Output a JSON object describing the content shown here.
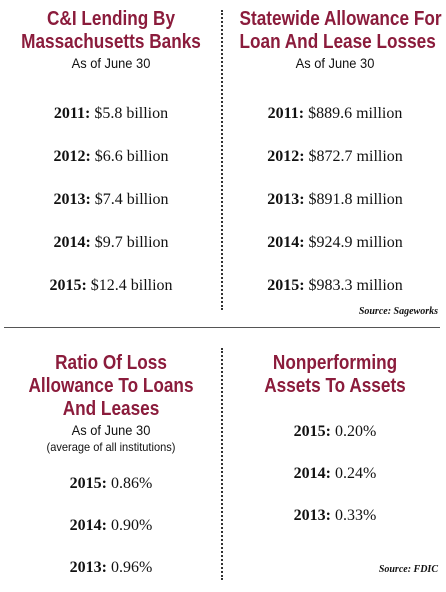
{
  "panels": {
    "ci_lending": {
      "title_line1": "C&I Lending By",
      "title_line2": "Massachusetts Banks",
      "subtitle": "As of June 30",
      "rows": [
        {
          "year": "2011:",
          "value": "$5.8 billion"
        },
        {
          "year": "2012:",
          "value": "$6.6 billion"
        },
        {
          "year": "2013:",
          "value": "$7.4 billion"
        },
        {
          "year": "2014:",
          "value": "$9.7 billion"
        },
        {
          "year": "2015:",
          "value": "$12.4 billion"
        }
      ]
    },
    "allowance": {
      "title_line1": "Statewide Allowance For",
      "title_line2": "Loan And Lease Losses",
      "subtitle": "As of June 30",
      "rows": [
        {
          "year": "2011:",
          "value": "$889.6 million"
        },
        {
          "year": "2012:",
          "value": "$872.7 million"
        },
        {
          "year": "2013:",
          "value": "$891.8 million"
        },
        {
          "year": "2014:",
          "value": "$924.9 million"
        },
        {
          "year": "2015:",
          "value": "$983.3 million"
        }
      ],
      "source": "Source: Sageworks"
    },
    "ratio": {
      "title_line1": "Ratio Of Loss",
      "title_line2": "Allowance To Loans",
      "title_line3": "And Leases",
      "subtitle": "As of June 30",
      "note": "(average of all institutions)",
      "rows": [
        {
          "year": "2015:",
          "value": "0.86%"
        },
        {
          "year": "2014:",
          "value": "0.90%"
        },
        {
          "year": "2013:",
          "value": "0.96%"
        }
      ]
    },
    "nonperforming": {
      "title_line1": "Nonperforming",
      "title_line2": "Assets To Assets",
      "rows": [
        {
          "year": "2015:",
          "value": "0.20%"
        },
        {
          "year": "2014:",
          "value": "0.24%"
        },
        {
          "year": "2013:",
          "value": "0.33%"
        }
      ],
      "source": "Source: FDIC"
    }
  },
  "colors": {
    "title": "#8b1c3c",
    "text": "#111111"
  }
}
